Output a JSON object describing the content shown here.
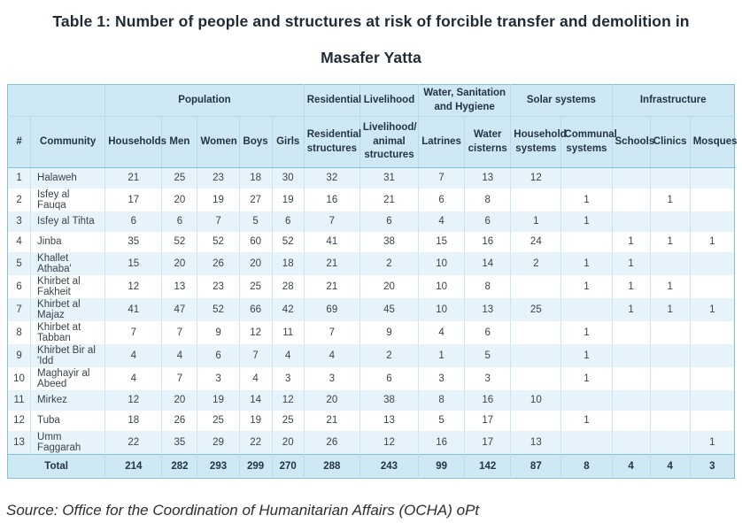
{
  "page": {
    "title": "Table 1: Number of people and structures at risk of forcible transfer and demolition in Masafer Yatta",
    "source_note": "Source: Office for the Coordination of Humanitarian Affairs (OCHA) oPt"
  },
  "colors": {
    "header_bg": "#cfe9f4",
    "row_alt_bg": "#e7f3fa",
    "row_bg": "#ffffff",
    "total_bg": "#cfe9f4",
    "outer_border": "#7fc2da",
    "grid_line": "#c9e5f2",
    "title_text": "#1e2b36",
    "body_text": "#38434c"
  },
  "chart_data": {
    "type": "table",
    "group_headers": [
      {
        "label": "",
        "span": 2
      },
      {
        "label": "Population",
        "span": 5
      },
      {
        "label": "Residential",
        "span": 1
      },
      {
        "label": "Livelihood",
        "span": 1
      },
      {
        "label": "Water, Sanitation and Hygiene",
        "span": 2
      },
      {
        "label": "Solar systems",
        "span": 2
      },
      {
        "label": "Infrastructure",
        "span": 3
      }
    ],
    "columns": [
      "#",
      "Community",
      "Households",
      "Men",
      "Women",
      "Boys",
      "Girls",
      "Residential structures",
      "Livelihood/ animal structures",
      "Latrines",
      "Water cisterns",
      "Household systems",
      "Communal systems",
      "Schools",
      "Clinics",
      "Mosques"
    ],
    "rows": [
      [
        "1",
        "Halaweh",
        "21",
        "25",
        "23",
        "18",
        "30",
        "32",
        "31",
        "7",
        "13",
        "12",
        "",
        "",
        "",
        ""
      ],
      [
        "2",
        "Isfey al Fauqa",
        "17",
        "20",
        "19",
        "27",
        "19",
        "16",
        "21",
        "6",
        "8",
        "",
        "1",
        "",
        "1",
        ""
      ],
      [
        "3",
        "Isfey al Tihta",
        "6",
        "6",
        "7",
        "5",
        "6",
        "7",
        "6",
        "4",
        "6",
        "1",
        "1",
        "",
        "",
        ""
      ],
      [
        "4",
        "Jinba",
        "35",
        "52",
        "52",
        "60",
        "52",
        "41",
        "38",
        "15",
        "16",
        "24",
        "",
        "1",
        "1",
        "1"
      ],
      [
        "5",
        "Khallet Athaba'",
        "15",
        "20",
        "26",
        "20",
        "18",
        "21",
        "2",
        "10",
        "14",
        "2",
        "1",
        "1",
        "",
        ""
      ],
      [
        "6",
        "Khirbet al Fakheit",
        "12",
        "13",
        "23",
        "25",
        "28",
        "21",
        "20",
        "10",
        "8",
        "",
        "1",
        "1",
        "1",
        ""
      ],
      [
        "7",
        "Khirbet al Majaz",
        "41",
        "47",
        "52",
        "66",
        "42",
        "69",
        "45",
        "10",
        "13",
        "25",
        "",
        "1",
        "1",
        "1"
      ],
      [
        "8",
        "Khirbet at Tabban",
        "7",
        "7",
        "9",
        "12",
        "11",
        "7",
        "9",
        "4",
        "6",
        "",
        "1",
        "",
        "",
        ""
      ],
      [
        "9",
        "Khirbet Bir al 'Idd",
        "4",
        "4",
        "6",
        "7",
        "4",
        "4",
        "2",
        "1",
        "5",
        "",
        "1",
        "",
        "",
        ""
      ],
      [
        "10",
        "Maghayir al Abeed",
        "4",
        "7",
        "3",
        "4",
        "3",
        "3",
        "6",
        "3",
        "3",
        "",
        "1",
        "",
        "",
        ""
      ],
      [
        "11",
        "Mirkez",
        "12",
        "20",
        "19",
        "14",
        "12",
        "20",
        "38",
        "8",
        "16",
        "10",
        "",
        "",
        "",
        ""
      ],
      [
        "12",
        "Tuba",
        "18",
        "26",
        "25",
        "19",
        "25",
        "21",
        "13",
        "5",
        "17",
        "",
        "1",
        "",
        "",
        ""
      ],
      [
        "13",
        "Umm Faggarah",
        "22",
        "35",
        "29",
        "22",
        "20",
        "26",
        "12",
        "16",
        "17",
        "13",
        "",
        "",
        "",
        "1"
      ]
    ],
    "total_row": [
      "Total",
      "214",
      "282",
      "293",
      "299",
      "270",
      "288",
      "243",
      "99",
      "142",
      "87",
      "8",
      "4",
      "4",
      "3"
    ]
  }
}
